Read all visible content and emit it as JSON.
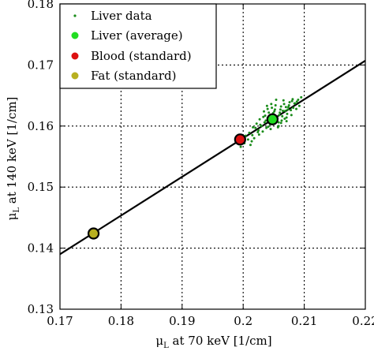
{
  "chart_data": {
    "type": "scatter",
    "xlabel_pre": "μ",
    "xlabel_sub": "L",
    "xlabel_post": " at 70 keV [1/cm]",
    "ylabel_pre": "μ",
    "ylabel_sub": "L",
    "ylabel_post": " at 140 keV [1/cm]",
    "xlim": [
      0.17,
      0.22
    ],
    "ylim": [
      0.13,
      0.18
    ],
    "xticks": [
      0.17,
      0.18,
      0.19,
      0.2,
      0.21,
      0.22
    ],
    "yticks": [
      0.13,
      0.14,
      0.15,
      0.16,
      0.17,
      0.18
    ],
    "xtick_labels": [
      "0.17",
      "0.18",
      "0.19",
      "0.2",
      "0.21",
      "0.22"
    ],
    "ytick_labels": [
      "0.13",
      "0.14",
      "0.15",
      "0.16",
      "0.17",
      "0.18"
    ],
    "grid": true,
    "legend_position": "top-left",
    "legend": [
      {
        "label": "Liver data",
        "marker": "dot",
        "color": "#1a8c1a"
      },
      {
        "label": "Liver (average)",
        "marker": "circle",
        "color": "#22dd22"
      },
      {
        "label": "Blood (standard)",
        "marker": "circle",
        "color": "#dd1111"
      },
      {
        "label": "Fat (standard)",
        "marker": "circle",
        "color": "#b8b020"
      }
    ],
    "fit_line": {
      "x": [
        0.17,
        0.22
      ],
      "y": [
        0.139,
        0.1707
      ],
      "color": "#000000"
    },
    "series": [
      {
        "name": "Liver data",
        "color": "#1a8c1a",
        "points": [
          [
            0.2002,
            0.1572
          ],
          [
            0.201,
            0.1589
          ],
          [
            0.2018,
            0.158
          ],
          [
            0.2025,
            0.1593
          ],
          [
            0.203,
            0.16
          ],
          [
            0.2035,
            0.1606
          ],
          [
            0.204,
            0.1613
          ],
          [
            0.2045,
            0.161
          ],
          [
            0.205,
            0.1617
          ],
          [
            0.2055,
            0.1611
          ],
          [
            0.206,
            0.1622
          ],
          [
            0.2065,
            0.1625
          ],
          [
            0.207,
            0.1631
          ],
          [
            0.2075,
            0.1634
          ],
          [
            0.208,
            0.1641
          ],
          [
            0.2085,
            0.1637
          ],
          [
            0.209,
            0.1643
          ],
          [
            0.2095,
            0.1647
          ],
          [
            0.2036,
            0.1617
          ],
          [
            0.2042,
            0.1622
          ],
          [
            0.2048,
            0.1604
          ],
          [
            0.2052,
            0.1627
          ],
          [
            0.2058,
            0.1606
          ],
          [
            0.2062,
            0.1632
          ],
          [
            0.2068,
            0.1612
          ],
          [
            0.2072,
            0.162
          ],
          [
            0.2078,
            0.1626
          ],
          [
            0.2032,
            0.1591
          ],
          [
            0.2038,
            0.1597
          ],
          [
            0.2044,
            0.1603
          ],
          [
            0.202,
            0.1597
          ],
          [
            0.2015,
            0.1585
          ],
          [
            0.2008,
            0.1578
          ],
          [
            0.2027,
            0.1611
          ],
          [
            0.2033,
            0.1615
          ],
          [
            0.2047,
            0.163
          ],
          [
            0.2053,
            0.1634
          ],
          [
            0.2057,
            0.1598
          ],
          [
            0.2063,
            0.1609
          ],
          [
            0.2067,
            0.1636
          ],
          [
            0.2071,
            0.1608
          ],
          [
            0.2076,
            0.1639
          ],
          [
            0.2082,
            0.163
          ],
          [
            0.2087,
            0.1628
          ],
          [
            0.2092,
            0.1633
          ],
          [
            0.204,
            0.1628
          ],
          [
            0.2046,
            0.1636
          ],
          [
            0.2054,
            0.1643
          ],
          [
            0.2026,
            0.1586
          ],
          [
            0.2016,
            0.1598
          ],
          [
            0.2012,
            0.1569
          ],
          [
            0.2004,
            0.1584
          ],
          [
            0.1996,
            0.1566
          ],
          [
            0.2022,
            0.1604
          ],
          [
            0.2037,
            0.1609
          ],
          [
            0.2043,
            0.1616
          ],
          [
            0.2049,
            0.1621
          ],
          [
            0.2059,
            0.1618
          ],
          [
            0.2061,
            0.1627
          ],
          [
            0.2069,
            0.1625
          ],
          [
            0.2074,
            0.1631
          ],
          [
            0.2079,
            0.1618
          ],
          [
            0.2084,
            0.1637
          ],
          [
            0.2034,
            0.1624
          ],
          [
            0.2041,
            0.1599
          ],
          [
            0.2056,
            0.1613
          ],
          [
            0.2064,
            0.1616
          ],
          [
            0.2073,
            0.1627
          ],
          [
            0.2028,
            0.1602
          ],
          [
            0.2051,
            0.1624
          ],
          [
            0.2066,
            0.1642
          ],
          [
            0.2081,
            0.1644
          ],
          [
            0.2024,
            0.159
          ],
          [
            0.2014,
            0.1575
          ],
          [
            0.2039,
            0.1633
          ],
          [
            0.2058,
            0.16
          ],
          [
            0.2045,
            0.1595
          ],
          [
            0.2071,
            0.1614
          ],
          [
            0.2088,
            0.164
          ],
          [
            0.2062,
            0.1605
          ]
        ]
      },
      {
        "name": "Liver (average)",
        "color": "#22dd22",
        "points": [
          [
            0.2048,
            0.1611
          ]
        ]
      },
      {
        "name": "Blood (standard)",
        "color": "#dd1111",
        "points": [
          [
            0.1995,
            0.1578
          ]
        ]
      },
      {
        "name": "Fat (standard)",
        "color": "#b8b020",
        "points": [
          [
            0.1755,
            0.1424
          ]
        ]
      }
    ]
  }
}
